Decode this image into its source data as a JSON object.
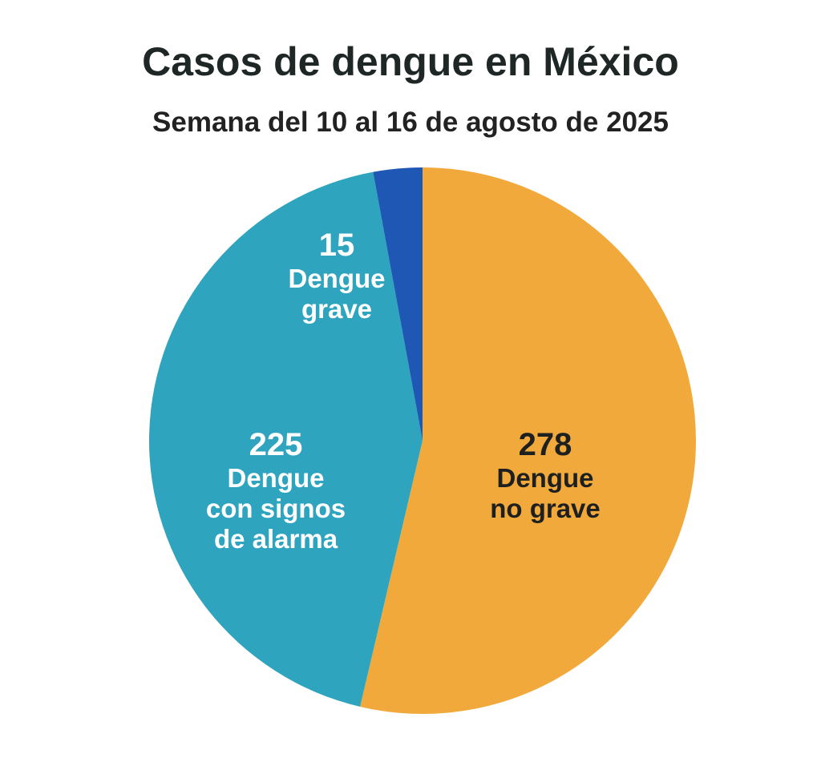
{
  "chart_data": {
    "type": "pie",
    "title": "Casos de dengue en México",
    "subtitle": "Semana del 10 al 16 de agosto de 2025",
    "slices": [
      {
        "label_lines": [
          "Dengue",
          "no grave"
        ],
        "value": 278,
        "value_label": "278",
        "color": "#F2A93B",
        "text_color": "#1e2020"
      },
      {
        "label_lines": [
          "Dengue",
          "con signos",
          "de alarma"
        ],
        "value": 225,
        "value_label": "225",
        "color": "#2FA4BF",
        "text_color": "#ffffff"
      },
      {
        "label_lines": [
          "Dengue",
          "grave"
        ],
        "value": 15,
        "value_label": "15",
        "color": "#1F57B5",
        "text_color": "#ffffff"
      }
    ]
  }
}
